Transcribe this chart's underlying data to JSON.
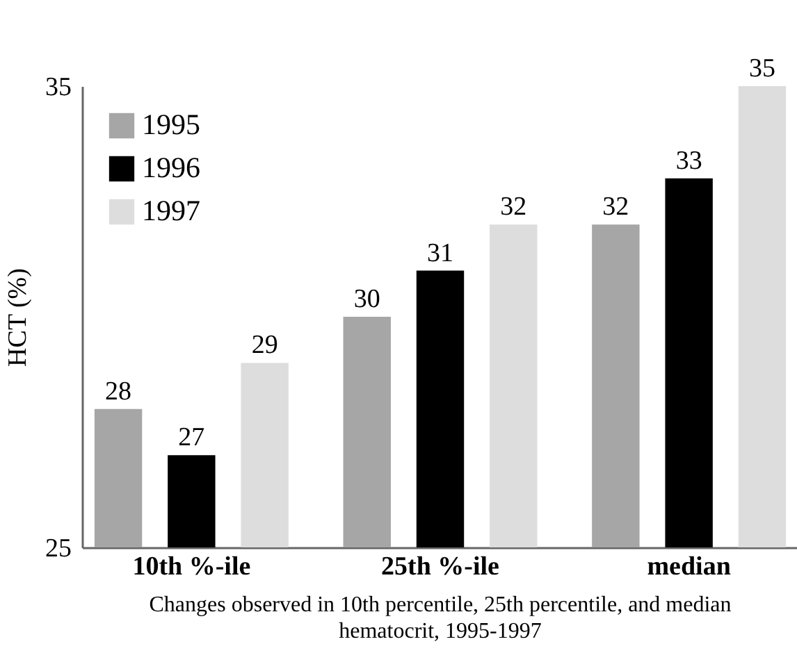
{
  "chart_data": {
    "type": "bar",
    "ylabel": "HCT (%)",
    "categories": [
      "10th %-ile",
      "25th %-ile",
      "median"
    ],
    "series": [
      {
        "name": "1995",
        "color": "#a6a6a6",
        "values": [
          28,
          30,
          32
        ]
      },
      {
        "name": "1996",
        "color": "#000000",
        "values": [
          27,
          31,
          33
        ]
      },
      {
        "name": "1997",
        "color": "#dddddd",
        "values": [
          29,
          32,
          35
        ]
      }
    ],
    "ylim": [
      25,
      35
    ],
    "yticks": [
      25,
      35
    ],
    "data_labels": true,
    "legend": "top left",
    "annotations": [
      "Changes observed in 10th percentile, 25th percentile, and median hematocrit, 1995-1997"
    ]
  }
}
